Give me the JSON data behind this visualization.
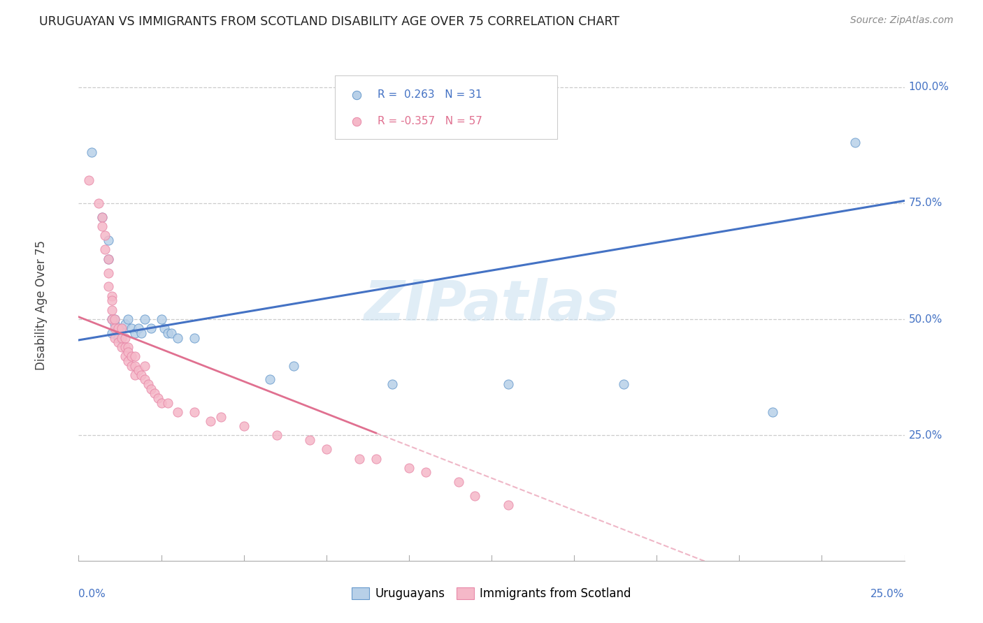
{
  "title": "URUGUAYAN VS IMMIGRANTS FROM SCOTLAND DISABILITY AGE OVER 75 CORRELATION CHART",
  "source": "Source: ZipAtlas.com",
  "ylabel": "Disability Age Over 75",
  "watermark": "ZIPatlas",
  "blue_color": "#b8d0e8",
  "pink_color": "#f5b8c8",
  "blue_edge_color": "#6699cc",
  "pink_edge_color": "#e888a8",
  "blue_line_color": "#4472c4",
  "pink_line_color": "#e07090",
  "right_axis_color": "#4472c4",
  "xlim": [
    0.0,
    0.25
  ],
  "ylim": [
    -0.02,
    1.08
  ],
  "yticks_right": [
    0.25,
    0.5,
    0.75,
    1.0
  ],
  "ytick_labels_right": [
    "25.0%",
    "50.0%",
    "75.0%",
    "100.0%"
  ],
  "blue_trend": [
    0.0,
    0.25,
    0.455,
    0.755
  ],
  "pink_trend_solid": [
    0.0,
    0.09,
    0.505,
    0.255
  ],
  "pink_trend_dashed": [
    0.09,
    0.2,
    0.255,
    -0.05
  ],
  "blue_x": [
    0.004,
    0.007,
    0.009,
    0.009,
    0.01,
    0.01,
    0.011,
    0.011,
    0.012,
    0.013,
    0.014,
    0.015,
    0.016,
    0.017,
    0.018,
    0.019,
    0.02,
    0.022,
    0.025,
    0.026,
    0.027,
    0.028,
    0.03,
    0.035,
    0.058,
    0.065,
    0.095,
    0.13,
    0.165,
    0.21,
    0.235
  ],
  "blue_y": [
    0.86,
    0.72,
    0.67,
    0.63,
    0.5,
    0.47,
    0.49,
    0.5,
    0.46,
    0.48,
    0.49,
    0.5,
    0.48,
    0.47,
    0.48,
    0.47,
    0.5,
    0.48,
    0.5,
    0.48,
    0.47,
    0.47,
    0.46,
    0.46,
    0.37,
    0.4,
    0.36,
    0.36,
    0.36,
    0.3,
    0.88
  ],
  "pink_x": [
    0.003,
    0.006,
    0.007,
    0.007,
    0.008,
    0.008,
    0.009,
    0.009,
    0.009,
    0.01,
    0.01,
    0.01,
    0.01,
    0.011,
    0.011,
    0.011,
    0.012,
    0.012,
    0.013,
    0.013,
    0.013,
    0.014,
    0.014,
    0.014,
    0.015,
    0.015,
    0.015,
    0.016,
    0.016,
    0.017,
    0.017,
    0.017,
    0.018,
    0.019,
    0.02,
    0.02,
    0.021,
    0.022,
    0.023,
    0.024,
    0.025,
    0.027,
    0.03,
    0.035,
    0.04,
    0.043,
    0.05,
    0.06,
    0.07,
    0.075,
    0.085,
    0.09,
    0.1,
    0.105,
    0.115,
    0.12,
    0.13
  ],
  "pink_y": [
    0.8,
    0.75,
    0.72,
    0.7,
    0.68,
    0.65,
    0.63,
    0.6,
    0.57,
    0.55,
    0.54,
    0.52,
    0.5,
    0.5,
    0.48,
    0.46,
    0.48,
    0.45,
    0.48,
    0.46,
    0.44,
    0.46,
    0.44,
    0.42,
    0.44,
    0.43,
    0.41,
    0.42,
    0.4,
    0.42,
    0.4,
    0.38,
    0.39,
    0.38,
    0.4,
    0.37,
    0.36,
    0.35,
    0.34,
    0.33,
    0.32,
    0.32,
    0.3,
    0.3,
    0.28,
    0.29,
    0.27,
    0.25,
    0.24,
    0.22,
    0.2,
    0.2,
    0.18,
    0.17,
    0.15,
    0.12,
    0.1
  ]
}
